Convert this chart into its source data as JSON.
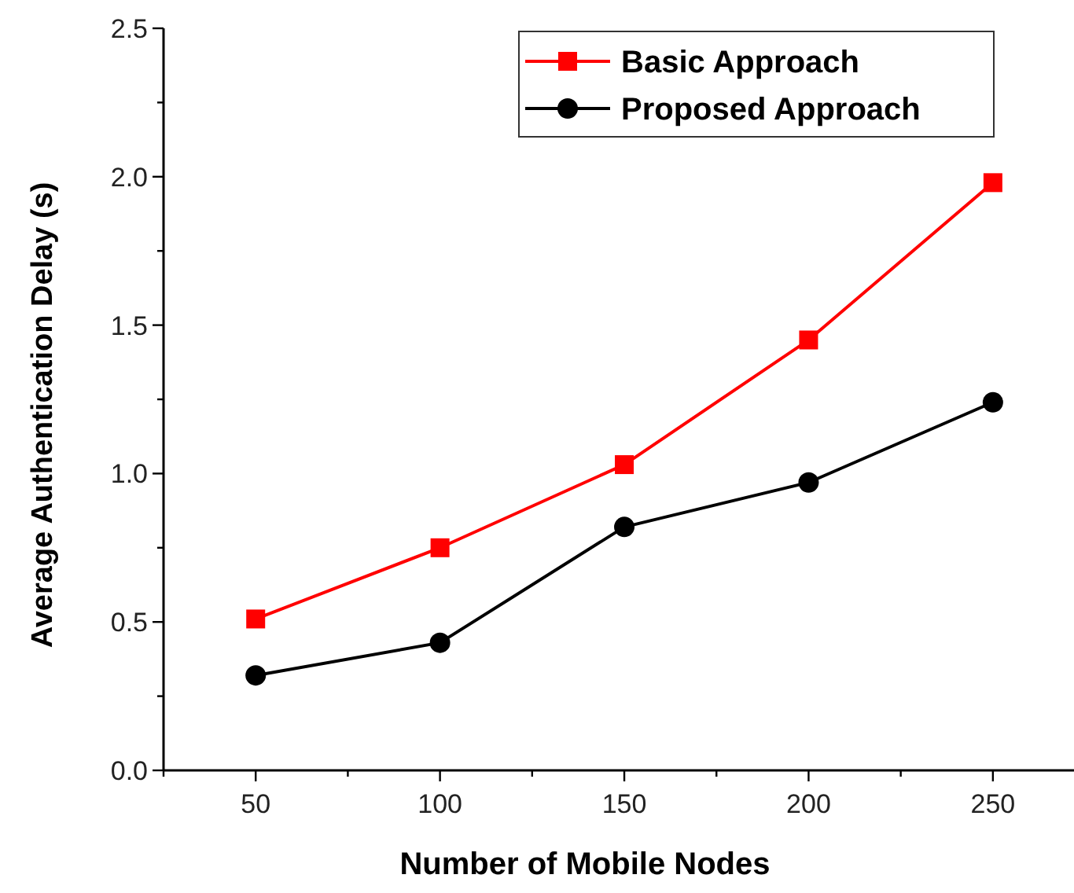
{
  "chart_data": {
    "type": "line",
    "xlabel": "Number of Mobile Nodes",
    "ylabel": "Average Authentication Delay (s)",
    "x": [
      50,
      100,
      150,
      200,
      250
    ],
    "series": [
      {
        "name": "Basic Approach",
        "color": "#ff0000",
        "marker": "square",
        "values": [
          0.51,
          0.75,
          1.03,
          1.45,
          1.98
        ]
      },
      {
        "name": "Proposed Approach",
        "color": "#000000",
        "marker": "circle",
        "values": [
          0.32,
          0.43,
          0.82,
          0.97,
          1.24
        ]
      }
    ],
    "xlim": [
      25,
      272
    ],
    "xticks": [
      {
        "value": 25,
        "label": null
      },
      50,
      {
        "value": 75,
        "label": null
      },
      100,
      {
        "value": 125,
        "label": null
      },
      150,
      {
        "value": 175,
        "label": null
      },
      200,
      {
        "value": 225,
        "label": null
      },
      250
    ],
    "ylim": [
      0,
      2.5
    ],
    "yticks": [
      {
        "value": 0,
        "label": "0.0"
      },
      {
        "value": 0.25,
        "label": null
      },
      {
        "value": 0.5,
        "label": "0.5"
      },
      {
        "value": 0.75,
        "label": null
      },
      {
        "value": 1,
        "label": "1.0"
      },
      {
        "value": 1.25,
        "label": null
      },
      {
        "value": 1.5,
        "label": "1.5"
      },
      {
        "value": 1.75,
        "label": null
      },
      {
        "value": 2,
        "label": "2.0"
      },
      {
        "value": 2.25,
        "label": null
      },
      {
        "value": 2.5,
        "label": "2.5"
      }
    ],
    "grid": false,
    "legend": "top right"
  }
}
